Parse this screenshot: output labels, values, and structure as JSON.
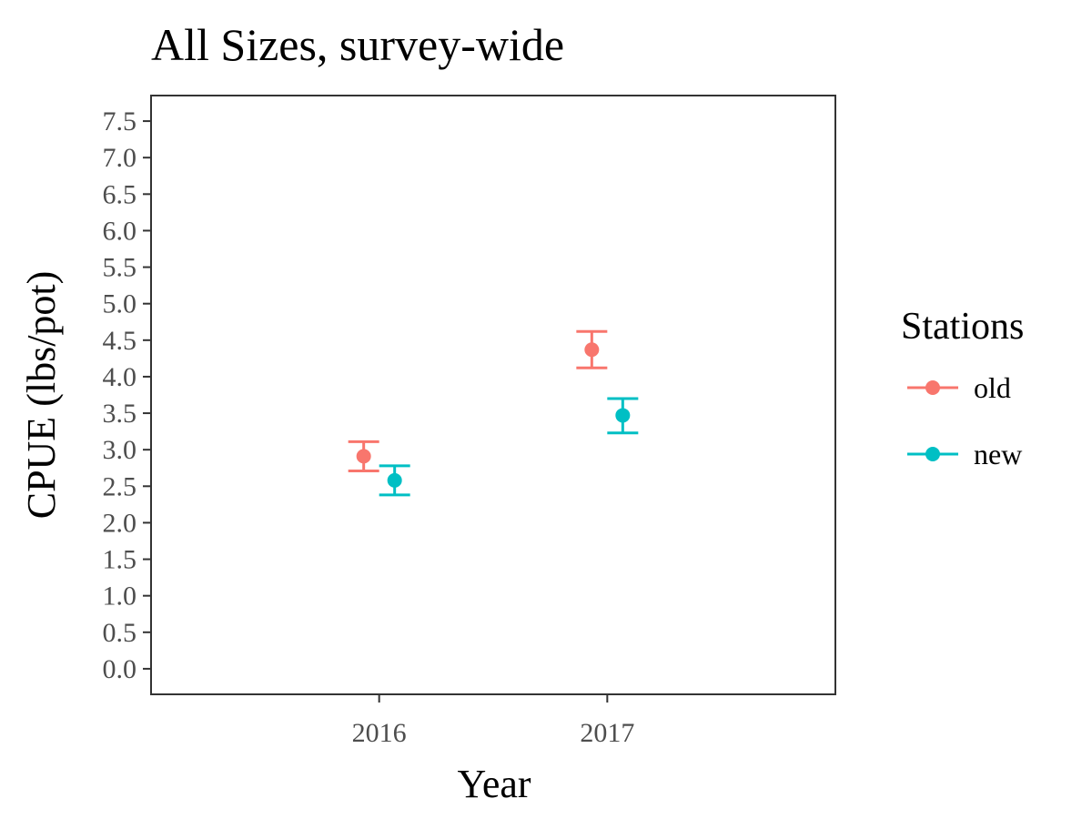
{
  "chart_data": {
    "type": "scatter",
    "title": "All Sizes, survey-wide",
    "xlabel": "Year",
    "ylabel": "CPUE (lbs/pot)",
    "categories": [
      "2016",
      "2017"
    ],
    "ylim": [
      -0.35,
      7.85
    ],
    "yticks": [
      "0.0",
      "0.5",
      "1.0",
      "1.5",
      "2.0",
      "2.5",
      "3.0",
      "3.5",
      "4.0",
      "4.5",
      "5.0",
      "5.5",
      "6.0",
      "6.5",
      "7.0",
      "7.5"
    ],
    "grid": false,
    "error_bars": true,
    "legend": {
      "title": "Stations",
      "position": "right"
    },
    "series": [
      {
        "name": "old",
        "color": "#f8766d",
        "values": [
          2.91,
          4.37
        ],
        "lower": [
          2.71,
          4.12
        ],
        "upper": [
          3.11,
          4.62
        ]
      },
      {
        "name": "new",
        "color": "#00bfc4",
        "values": [
          2.58,
          3.47
        ],
        "lower": [
          2.38,
          3.23
        ],
        "upper": [
          2.78,
          3.7
        ]
      }
    ]
  }
}
